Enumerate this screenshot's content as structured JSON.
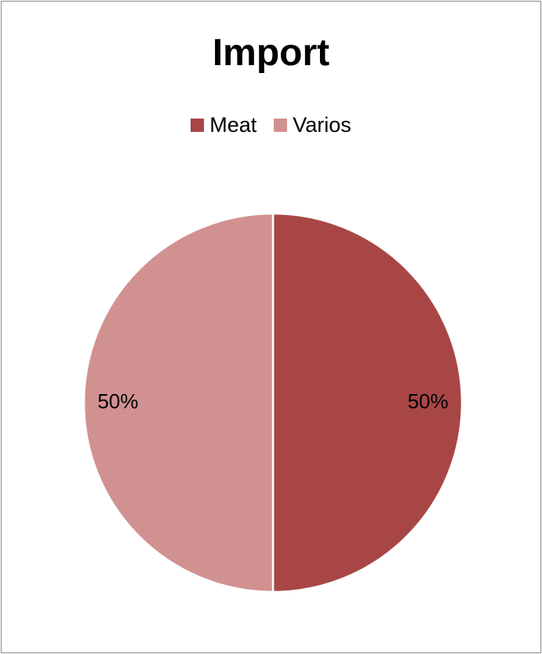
{
  "chart_data": {
    "type": "pie",
    "title": "Import",
    "legend_position": "top",
    "categories": [
      "Meat",
      "Varios"
    ],
    "values": [
      50,
      50
    ],
    "data_labels": [
      "50%",
      "50%"
    ],
    "colors": [
      "#a84646",
      "#d29191"
    ],
    "slice_border_color": "#ffffff",
    "start_angle_deg": 0,
    "direction": "clockwise"
  }
}
